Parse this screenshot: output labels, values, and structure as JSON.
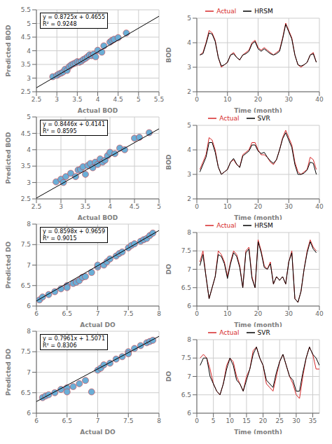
{
  "chart_data": [
    {
      "type": "scatter",
      "xlabel": "Actual BOD",
      "ylabel": "Predicted BOD",
      "xlim": [
        2.5,
        5.5
      ],
      "ylim": [
        2.5,
        5.5
      ],
      "xticks": [
        2.5,
        3,
        3.5,
        4,
        4.5,
        5,
        5.5
      ],
      "yticks": [
        2.5,
        3,
        3.5,
        4,
        4.5,
        5,
        5.5
      ],
      "grid": true,
      "annotations": [
        "y = 0.8725x + 0.4655",
        "R² = 0.9248"
      ],
      "series": [
        {
          "type": "scatter",
          "color": "#6baed6",
          "x": [
            2.9,
            3.0,
            3.05,
            3.1,
            3.15,
            3.2,
            3.25,
            3.3,
            3.35,
            3.4,
            3.45,
            3.5,
            3.55,
            3.6,
            3.65,
            3.7,
            3.75,
            3.8,
            3.85,
            3.9,
            3.95,
            4.0,
            4.1,
            4.15,
            4.3,
            4.35,
            4.4,
            4.5,
            4.7
          ],
          "values": [
            3.05,
            3.1,
            3.15,
            3.18,
            3.22,
            3.32,
            3.28,
            3.42,
            3.48,
            3.52,
            3.55,
            3.6,
            3.58,
            3.62,
            3.68,
            3.72,
            3.78,
            3.85,
            3.82,
            3.88,
            3.78,
            4.02,
            3.95,
            4.18,
            4.32,
            4.38,
            4.42,
            4.48,
            4.65
          ]
        },
        {
          "type": "line",
          "color": "black",
          "x": [
            2.5,
            5.5
          ],
          "values": [
            2.64675,
            5.26425
          ]
        }
      ]
    },
    {
      "type": "line",
      "xlabel": "Time (month)",
      "ylabel": "BOD",
      "xlim": [
        0,
        40
      ],
      "ylim": [
        2,
        5
      ],
      "xticks": [
        0,
        10,
        20,
        30,
        40
      ],
      "yticks": [
        2,
        3,
        4,
        5
      ],
      "grid": true,
      "legend": "upper center",
      "x": [
        1,
        2,
        3,
        4,
        5,
        6,
        7,
        8,
        9,
        10,
        11,
        12,
        13,
        14,
        15,
        16,
        17,
        18,
        19,
        20,
        21,
        22,
        23,
        24,
        25,
        26,
        27,
        28,
        29,
        30,
        31,
        32,
        33,
        34,
        35,
        36,
        37,
        38,
        39
      ],
      "series": [
        {
          "name": "Actual",
          "color": "#d62728",
          "values": [
            3.5,
            3.6,
            4.0,
            4.5,
            4.4,
            4.1,
            3.4,
            3.0,
            3.1,
            3.2,
            3.5,
            3.6,
            3.4,
            3.3,
            3.5,
            3.6,
            3.7,
            4.0,
            4.1,
            3.8,
            3.7,
            3.8,
            3.7,
            3.6,
            3.5,
            3.6,
            3.7,
            4.2,
            4.8,
            4.5,
            4.2,
            3.5,
            3.1,
            3.0,
            3.1,
            3.2,
            3.5,
            3.6,
            3.2
          ]
        },
        {
          "name": "HRSM",
          "color": "black",
          "values": [
            3.5,
            3.55,
            3.95,
            4.4,
            4.35,
            4.05,
            3.4,
            3.05,
            3.1,
            3.2,
            3.5,
            3.55,
            3.4,
            3.3,
            3.5,
            3.55,
            3.65,
            3.95,
            4.05,
            3.75,
            3.65,
            3.75,
            3.65,
            3.55,
            3.5,
            3.55,
            3.65,
            4.15,
            4.75,
            4.45,
            4.15,
            3.5,
            3.1,
            3.05,
            3.1,
            3.2,
            3.5,
            3.55,
            3.2
          ]
        }
      ]
    },
    {
      "type": "scatter",
      "xlabel": "Actual BOD",
      "ylabel": "Predicted BOD",
      "xlim": [
        2.5,
        5.0
      ],
      "ylim": [
        2.5,
        5.0
      ],
      "xticks": [
        2.5,
        3,
        3.5,
        4,
        4.5,
        5
      ],
      "yticks": [
        2.5,
        3,
        3.5,
        4,
        4.5,
        5
      ],
      "grid": true,
      "annotations": [
        "y = 0.8446x + 0.4141",
        "R² = 0.8595"
      ],
      "series": [
        {
          "type": "scatter",
          "color": "#6baed6",
          "x": [
            2.9,
            3.0,
            3.05,
            3.1,
            3.2,
            3.3,
            3.35,
            3.4,
            3.45,
            3.5,
            3.55,
            3.6,
            3.65,
            3.7,
            3.75,
            3.8,
            3.85,
            3.9,
            3.95,
            4.0,
            4.1,
            4.2,
            4.3,
            4.5,
            4.6,
            4.8
          ],
          "values": [
            3.02,
            3.1,
            3.0,
            3.18,
            3.28,
            3.18,
            3.38,
            3.4,
            3.48,
            3.25,
            3.52,
            3.58,
            3.45,
            3.62,
            3.55,
            3.72,
            3.62,
            3.68,
            3.82,
            3.92,
            3.88,
            4.05,
            4.0,
            4.35,
            4.38,
            4.52
          ]
        },
        {
          "type": "line",
          "color": "black",
          "x": [
            2.5,
            5.0
          ],
          "values": [
            2.5256,
            4.6371
          ]
        }
      ]
    },
    {
      "type": "line",
      "xlabel": "Time (month)",
      "ylabel": "BOD",
      "xlim": [
        0,
        40
      ],
      "ylim": [
        2,
        5
      ],
      "xticks": [
        0,
        10,
        20,
        30,
        40
      ],
      "yticks": [
        2,
        3,
        4,
        5
      ],
      "grid": true,
      "legend": "upper center",
      "x": [
        1,
        2,
        3,
        4,
        5,
        6,
        7,
        8,
        9,
        10,
        11,
        12,
        13,
        14,
        15,
        16,
        17,
        18,
        19,
        20,
        21,
        22,
        23,
        24,
        25,
        26,
        27,
        28,
        29,
        30,
        31,
        32,
        33,
        34,
        35,
        36,
        37,
        38,
        39
      ],
      "series": [
        {
          "name": "Actual",
          "color": "#d62728",
          "values": [
            3.2,
            3.5,
            3.8,
            4.5,
            4.4,
            4.0,
            3.3,
            3.0,
            3.1,
            3.2,
            3.5,
            3.6,
            3.4,
            3.3,
            3.8,
            3.9,
            4.0,
            4.3,
            4.3,
            4.0,
            3.8,
            3.8,
            3.7,
            3.5,
            3.4,
            3.6,
            4.0,
            4.5,
            4.8,
            4.5,
            4.2,
            3.5,
            3.1,
            3.0,
            3.1,
            3.2,
            3.7,
            3.6,
            3.2
          ]
        },
        {
          "name": "SVR",
          "color": "black",
          "values": [
            3.1,
            3.4,
            3.7,
            4.3,
            4.3,
            3.9,
            3.3,
            3.0,
            3.1,
            3.2,
            3.5,
            3.65,
            3.42,
            3.28,
            3.75,
            3.85,
            3.95,
            4.2,
            4.2,
            3.95,
            3.85,
            3.9,
            3.7,
            3.55,
            3.45,
            3.6,
            4.0,
            4.45,
            4.7,
            4.4,
            4.1,
            3.4,
            3.0,
            3.0,
            3.05,
            3.18,
            3.5,
            3.45,
            3.0
          ]
        }
      ]
    },
    {
      "type": "scatter",
      "xlabel": "Actual DO",
      "ylabel": "Predicted DO",
      "xlim": [
        6,
        8
      ],
      "ylim": [
        6,
        8
      ],
      "xticks": [
        6,
        6.5,
        7,
        7.5,
        8
      ],
      "yticks": [
        6,
        6.5,
        7,
        7.5,
        8
      ],
      "grid": true,
      "annotations": [
        "y = 0.8598x + 0.9659",
        "R² = 0.9015"
      ],
      "series": [
        {
          "type": "scatter",
          "color": "#6baed6",
          "x": [
            6.05,
            6.1,
            6.2,
            6.3,
            6.4,
            6.5,
            6.5,
            6.6,
            6.65,
            6.7,
            6.75,
            6.8,
            6.9,
            7.0,
            7.0,
            7.1,
            7.15,
            7.2,
            7.3,
            7.35,
            7.4,
            7.5,
            7.55,
            7.6,
            7.7,
            7.75,
            7.8,
            7.85,
            7.9
          ],
          "values": [
            6.15,
            6.22,
            6.28,
            6.35,
            6.42,
            6.5,
            6.45,
            6.55,
            6.58,
            6.62,
            6.7,
            6.72,
            6.82,
            6.95,
            7.0,
            7.0,
            7.08,
            7.15,
            7.22,
            7.28,
            7.32,
            7.42,
            7.48,
            7.52,
            7.58,
            7.62,
            7.65,
            7.72,
            7.78
          ]
        },
        {
          "type": "line",
          "color": "black",
          "x": [
            6,
            8
          ],
          "values": [
            6.1247,
            7.8443
          ]
        }
      ]
    },
    {
      "type": "line",
      "xlabel": "Time (month)",
      "ylabel": "DO",
      "xlim": [
        0,
        40
      ],
      "ylim": [
        6,
        8
      ],
      "xticks": [
        0,
        10,
        20,
        30,
        40
      ],
      "yticks": [
        6,
        6.5,
        7,
        7.5,
        8
      ],
      "grid": true,
      "legend": "upper center",
      "x": [
        1,
        2,
        3,
        4,
        5,
        6,
        7,
        8,
        9,
        10,
        11,
        12,
        13,
        14,
        15,
        16,
        17,
        18,
        19,
        20,
        21,
        22,
        23,
        24,
        25,
        26,
        27,
        28,
        29,
        30,
        31,
        32,
        33,
        34,
        35,
        36,
        37,
        38,
        39
      ],
      "series": [
        {
          "name": "Actual",
          "color": "#d62728",
          "values": [
            7.2,
            7.5,
            6.8,
            6.2,
            6.5,
            6.8,
            7.5,
            7.4,
            7.2,
            6.8,
            7.2,
            7.5,
            7.4,
            7.1,
            6.5,
            7.5,
            7.6,
            6.8,
            6.5,
            7.8,
            7.5,
            7.1,
            7.0,
            7.2,
            6.6,
            6.8,
            6.7,
            6.8,
            6.6,
            7.2,
            7.5,
            6.2,
            6.1,
            6.4,
            7.0,
            7.5,
            7.8,
            7.6,
            7.5
          ]
        },
        {
          "name": "HRSM",
          "color": "black",
          "values": [
            7.1,
            7.4,
            6.8,
            6.2,
            6.5,
            6.8,
            7.4,
            7.35,
            7.15,
            6.75,
            7.15,
            7.45,
            7.35,
            7.05,
            6.5,
            7.45,
            7.55,
            6.75,
            6.5,
            7.75,
            7.45,
            7.05,
            7.0,
            7.15,
            6.6,
            6.8,
            6.7,
            6.8,
            6.6,
            7.2,
            7.45,
            6.2,
            6.1,
            6.4,
            7.0,
            7.45,
            7.75,
            7.55,
            7.45
          ]
        }
      ]
    },
    {
      "type": "scatter",
      "xlabel": "Actual DO",
      "ylabel": "Predicted DO",
      "xlim": [
        6,
        8
      ],
      "ylim": [
        6,
        8
      ],
      "xticks": [
        6,
        6.5,
        7,
        7.5,
        8
      ],
      "yticks": [
        6,
        6.5,
        7,
        7.5,
        8
      ],
      "grid": true,
      "annotations": [
        "y = 0.7961x + 1.5071",
        "R² = 0.8306"
      ],
      "series": [
        {
          "type": "scatter",
          "color": "#6baed6",
          "x": [
            6.1,
            6.15,
            6.2,
            6.3,
            6.4,
            6.5,
            6.5,
            6.6,
            6.7,
            6.8,
            6.9,
            7.0,
            7.05,
            7.1,
            7.2,
            7.3,
            7.4,
            7.5,
            7.5,
            7.6,
            7.7,
            7.8,
            7.85,
            7.9
          ],
          "values": [
            6.38,
            6.42,
            6.45,
            6.5,
            6.58,
            6.62,
            6.52,
            6.65,
            6.72,
            6.8,
            6.52,
            7.05,
            7.1,
            7.18,
            7.22,
            7.32,
            7.38,
            7.5,
            7.45,
            7.58,
            7.65,
            7.72,
            7.75,
            7.78
          ]
        },
        {
          "type": "line",
          "color": "black",
          "x": [
            6,
            8
          ],
          "values": [
            6.2837,
            7.8759
          ]
        }
      ]
    },
    {
      "type": "line",
      "xlabel": "Time (month)",
      "ylabel": "DO",
      "xlim": [
        0,
        37
      ],
      "ylim": [
        6,
        8
      ],
      "xticks": [
        0,
        5,
        10,
        15,
        20,
        25,
        30,
        35
      ],
      "yticks": [
        6,
        6.5,
        7,
        7.5,
        8
      ],
      "grid": true,
      "legend": "upper center",
      "x": [
        1,
        2,
        3,
        4,
        5,
        6,
        7,
        8,
        9,
        10,
        11,
        12,
        13,
        14,
        15,
        16,
        17,
        18,
        19,
        20,
        21,
        22,
        23,
        24,
        25,
        26,
        27,
        28,
        29,
        30,
        31,
        32,
        33,
        34,
        35,
        36,
        37
      ],
      "series": [
        {
          "name": "Actual",
          "color": "#d62728",
          "values": [
            7.5,
            7.6,
            7.5,
            7.2,
            6.8,
            6.6,
            6.5,
            6.8,
            7.3,
            7.5,
            7.4,
            7.0,
            6.8,
            6.6,
            7.0,
            7.2,
            7.7,
            7.8,
            7.5,
            7.3,
            6.8,
            6.7,
            6.6,
            7.0,
            7.4,
            7.6,
            7.3,
            7.0,
            6.8,
            6.5,
            6.4,
            7.0,
            7.5,
            7.8,
            7.6,
            7.2,
            7.2
          ]
        },
        {
          "name": "SVR",
          "color": "black",
          "values": [
            7.3,
            7.5,
            7.5,
            7.0,
            6.8,
            6.6,
            6.5,
            6.8,
            7.2,
            7.5,
            7.3,
            6.9,
            6.8,
            6.6,
            6.9,
            7.2,
            7.6,
            7.8,
            7.5,
            7.3,
            6.9,
            6.8,
            6.7,
            7.1,
            7.4,
            7.6,
            7.3,
            7.0,
            6.9,
            6.6,
            6.6,
            7.1,
            7.5,
            7.8,
            7.6,
            7.5,
            7.3
          ]
        }
      ]
    }
  ]
}
